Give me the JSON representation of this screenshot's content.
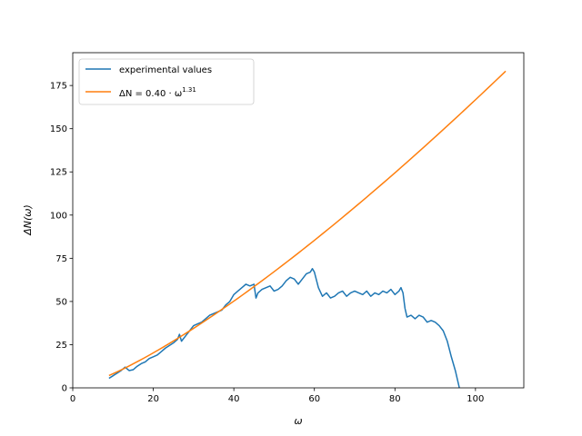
{
  "chart_data": {
    "type": "line",
    "title": "",
    "xlabel": "ω",
    "ylabel": "ΔN(ω)",
    "xlim": [
      0,
      112
    ],
    "ylim": [
      0,
      194
    ],
    "xticks": [
      0,
      20,
      40,
      60,
      80,
      100
    ],
    "yticks": [
      0,
      25,
      50,
      75,
      100,
      125,
      150,
      175
    ],
    "grid": false,
    "legend_position": "top-left",
    "series": [
      {
        "name": "experimental values",
        "color": "#1f77b4",
        "points": [
          [
            9,
            5.5
          ],
          [
            10,
            7
          ],
          [
            11,
            8.5
          ],
          [
            12,
            10
          ],
          [
            13,
            12
          ],
          [
            14,
            10
          ],
          [
            15,
            10.5
          ],
          [
            16,
            12.5
          ],
          [
            17,
            14
          ],
          [
            18,
            15
          ],
          [
            19,
            17
          ],
          [
            20,
            18
          ],
          [
            21,
            19
          ],
          [
            22,
            21
          ],
          [
            23,
            23
          ],
          [
            24,
            24.5
          ],
          [
            25,
            26
          ],
          [
            26,
            28
          ],
          [
            26.5,
            31
          ],
          [
            27,
            27
          ],
          [
            28,
            30
          ],
          [
            29,
            33
          ],
          [
            30,
            36
          ],
          [
            31,
            37
          ],
          [
            32,
            38
          ],
          [
            33,
            40
          ],
          [
            34,
            42
          ],
          [
            35,
            43
          ],
          [
            36,
            44
          ],
          [
            37,
            45
          ],
          [
            38,
            48
          ],
          [
            39,
            50
          ],
          [
            40,
            54
          ],
          [
            41,
            56
          ],
          [
            42,
            58
          ],
          [
            43,
            60
          ],
          [
            44,
            59
          ],
          [
            45,
            60
          ],
          [
            45.5,
            52
          ],
          [
            46,
            55
          ],
          [
            47,
            57
          ],
          [
            48,
            58
          ],
          [
            49,
            59
          ],
          [
            50,
            56
          ],
          [
            51,
            57
          ],
          [
            52,
            59
          ],
          [
            53,
            62
          ],
          [
            54,
            64
          ],
          [
            55,
            63
          ],
          [
            56,
            60
          ],
          [
            57,
            63
          ],
          [
            58,
            66
          ],
          [
            59,
            67
          ],
          [
            59.5,
            69
          ],
          [
            60,
            67
          ],
          [
            61,
            58
          ],
          [
            62,
            53
          ],
          [
            63,
            55
          ],
          [
            64,
            52
          ],
          [
            65,
            53
          ],
          [
            66,
            55
          ],
          [
            67,
            56
          ],
          [
            68,
            53
          ],
          [
            69,
            55
          ],
          [
            70,
            56
          ],
          [
            71,
            55
          ],
          [
            72,
            54
          ],
          [
            73,
            56
          ],
          [
            74,
            53
          ],
          [
            75,
            55
          ],
          [
            76,
            54
          ],
          [
            77,
            56
          ],
          [
            78,
            55
          ],
          [
            79,
            57
          ],
          [
            80,
            54
          ],
          [
            81,
            56
          ],
          [
            81.5,
            58
          ],
          [
            82,
            55
          ],
          [
            82.5,
            46
          ],
          [
            83,
            41
          ],
          [
            84,
            42
          ],
          [
            85,
            40
          ],
          [
            86,
            42
          ],
          [
            87,
            41
          ],
          [
            88,
            38
          ],
          [
            89,
            39
          ],
          [
            90,
            38
          ],
          [
            91,
            36
          ],
          [
            92,
            33
          ],
          [
            93,
            27
          ],
          [
            94,
            18
          ],
          [
            95,
            10
          ],
          [
            95.5,
            5
          ],
          [
            96,
            0
          ]
        ]
      },
      {
        "name": "ΔN = 0.40 · ω^1.31",
        "color": "#ff7f0e",
        "formula": {
          "coefficient": 0.4,
          "exponent": 1.31,
          "x_start": 9,
          "x_end": 107.5
        }
      }
    ],
    "legend": {
      "entry1": "experimental values",
      "entry2_prefix": "ΔN = 0.40 · ω",
      "entry2_exponent": "1.31"
    }
  }
}
